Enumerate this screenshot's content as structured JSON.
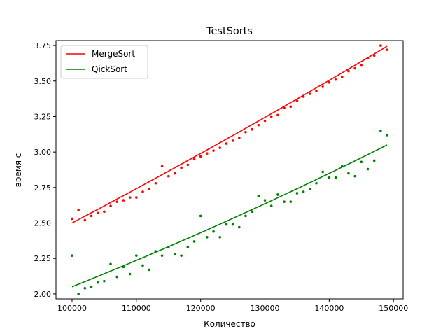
{
  "chart_data": {
    "type": "scatter",
    "title": "TestSorts",
    "xlabel": "Количество",
    "ylabel": "время с",
    "xlim": [
      97500,
      151500
    ],
    "ylim": [
      1.965,
      3.785
    ],
    "xticks": [
      100000,
      110000,
      120000,
      130000,
      140000,
      150000
    ],
    "xtick_labels": [
      "100000",
      "110000",
      "120000",
      "130000",
      "140000",
      "150000"
    ],
    "yticks": [
      2.0,
      2.25,
      2.5,
      2.75,
      3.0,
      3.25,
      3.5,
      3.75
    ],
    "ytick_labels": [
      "2.00",
      "2.25",
      "2.50",
      "2.75",
      "3.00",
      "3.25",
      "3.50",
      "3.75"
    ],
    "grid": false,
    "legend_position": "top-left",
    "x": [
      100000,
      101000,
      102000,
      103000,
      104000,
      105000,
      106000,
      107000,
      108000,
      109000,
      110000,
      111000,
      112000,
      113000,
      114000,
      115000,
      116000,
      117000,
      118000,
      119000,
      120000,
      121000,
      122000,
      123000,
      124000,
      125000,
      126000,
      127000,
      128000,
      129000,
      130000,
      131000,
      132000,
      133000,
      134000,
      135000,
      136000,
      137000,
      138000,
      139000,
      140000,
      141000,
      142000,
      143000,
      144000,
      145000,
      146000,
      147000,
      148000,
      149000
    ],
    "series": [
      {
        "name": "MergeSort",
        "color": "#ff0000",
        "points": [
          2.53,
          2.59,
          2.52,
          2.55,
          2.57,
          2.58,
          2.62,
          2.65,
          2.66,
          2.68,
          2.68,
          2.72,
          2.74,
          2.78,
          2.9,
          2.83,
          2.85,
          2.89,
          2.91,
          2.95,
          2.97,
          2.99,
          3.01,
          3.03,
          3.06,
          3.08,
          3.1,
          3.14,
          3.16,
          3.19,
          3.22,
          3.25,
          3.26,
          3.31,
          3.32,
          3.36,
          3.39,
          3.41,
          3.43,
          3.46,
          3.49,
          3.51,
          3.53,
          3.57,
          3.59,
          3.61,
          3.66,
          3.68,
          3.75,
          3.72
        ],
        "fit": {
          "x_start": 100000,
          "y_start": 2.5,
          "x_end": 149000,
          "y_end": 3.745,
          "curvature": 0.06
        }
      },
      {
        "name": "QickSort",
        "color": "#008000",
        "points": [
          2.27,
          2.0,
          2.04,
          2.05,
          2.08,
          2.09,
          2.21,
          2.12,
          2.19,
          2.14,
          2.27,
          2.2,
          2.17,
          2.3,
          2.27,
          2.33,
          2.28,
          2.27,
          2.33,
          2.37,
          2.55,
          2.4,
          2.44,
          2.4,
          2.49,
          2.49,
          2.47,
          2.55,
          2.58,
          2.69,
          2.66,
          2.62,
          2.7,
          2.65,
          2.65,
          2.71,
          2.72,
          2.74,
          2.78,
          2.86,
          2.82,
          2.82,
          2.9,
          2.85,
          2.83,
          2.93,
          2.88,
          2.94,
          3.15,
          3.12
        ],
        "fit": {
          "x_start": 100000,
          "y_start": 2.05,
          "x_end": 149000,
          "y_end": 3.05,
          "curvature": 0.11
        }
      }
    ]
  }
}
